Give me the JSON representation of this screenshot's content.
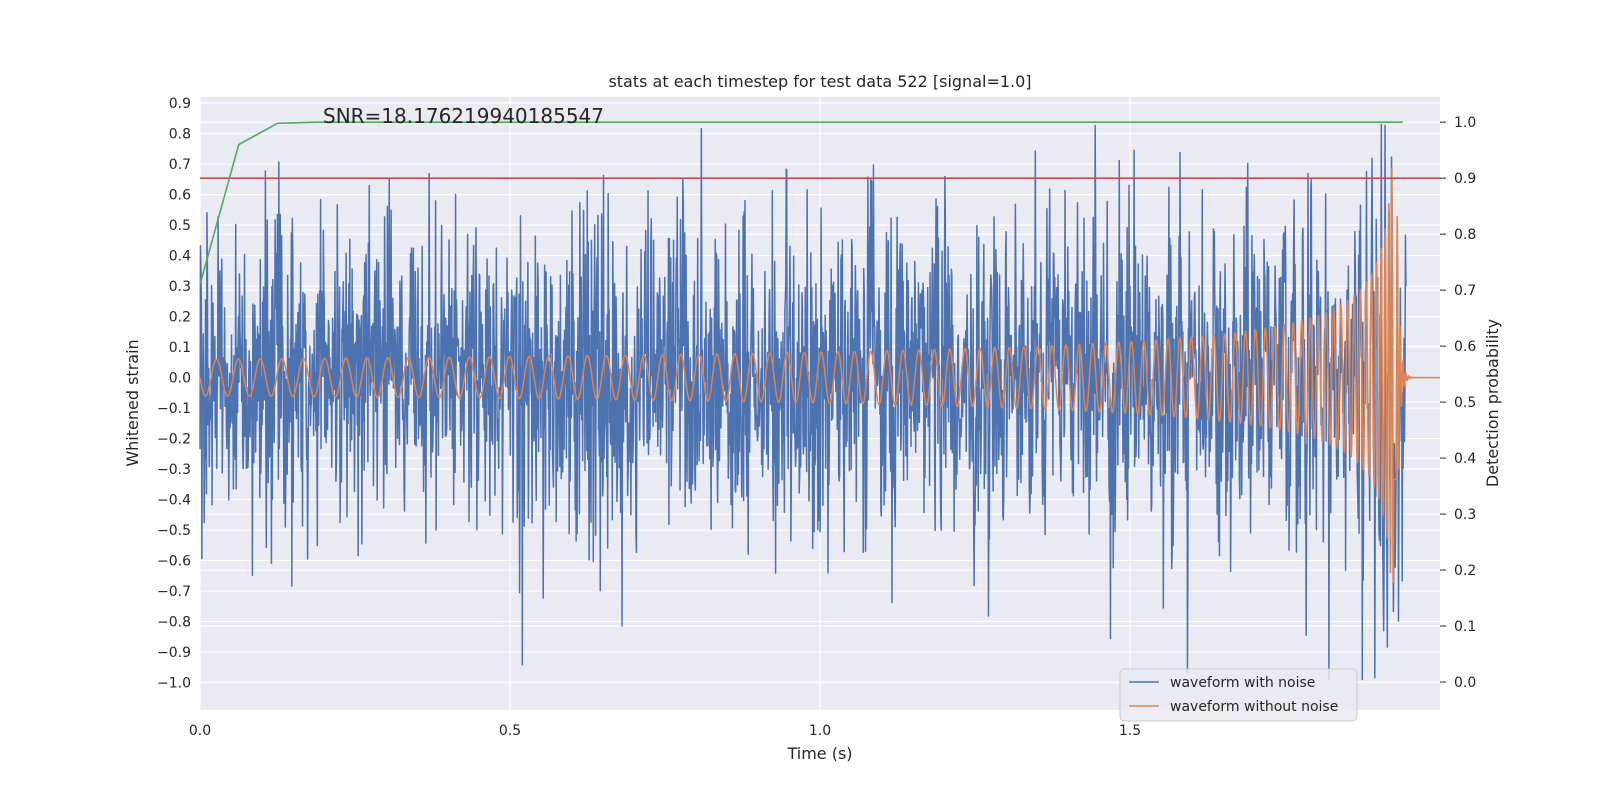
{
  "chart_data": {
    "type": "line",
    "title": "stats at each timestep for test data 522 [signal=1.0]",
    "xlabel": "Time (s)",
    "ylabel_left": "Whitened strain",
    "ylabel_right": "Detection probability",
    "annotation": "SNR=18.176219940185547",
    "xlim": [
      0.0,
      2.0
    ],
    "ylim_left": [
      -1.09,
      0.92
    ],
    "ylim_right": [
      -0.05,
      1.045
    ],
    "x_ticks": [
      0.0,
      0.5,
      1.0,
      1.5
    ],
    "x_tick_labels": [
      "0.0",
      "0.5",
      "1.0",
      "1.5"
    ],
    "y_left_ticks": [
      0.9,
      0.8,
      0.7,
      0.6,
      0.5,
      0.4,
      0.3,
      0.2,
      0.1,
      0.0,
      -0.1,
      -0.2,
      -0.3,
      -0.4,
      -0.5,
      -0.6,
      -0.7,
      -0.8,
      -0.9,
      -1.0
    ],
    "y_left_tick_labels": [
      "0.9",
      "0.8",
      "0.7",
      "0.6",
      "0.5",
      "0.4",
      "0.3",
      "0.2",
      "0.1",
      "0.0",
      "−0.1",
      "−0.2",
      "−0.3",
      "−0.4",
      "−0.5",
      "−0.6",
      "−0.7",
      "−0.8",
      "−0.9",
      "−1.0"
    ],
    "y_right_ticks": [
      1.0,
      0.9,
      0.8,
      0.7,
      0.6,
      0.5,
      0.4,
      0.3,
      0.2,
      0.1,
      0.0
    ],
    "y_right_tick_labels": [
      "1.0",
      "0.9",
      "0.8",
      "0.7",
      "0.6",
      "0.5",
      "0.4",
      "0.3",
      "0.2",
      "0.1",
      "0.0"
    ],
    "grid": true,
    "legend_position": "lower-right",
    "colors": {
      "background": "#eaeaf2",
      "grid": "#ffffff",
      "noisy": "#4c72b0",
      "clean": "#dd8452",
      "probability": "#55a868",
      "threshold": "#c44e52"
    },
    "series": [
      {
        "name": "waveform with noise",
        "axis": "left",
        "color": "#4c72b0",
        "t_start": 0.0,
        "t_end": 1.945,
        "amplitude_sd": 0.26,
        "range": [
          -0.99,
          0.83
        ]
      },
      {
        "name": "waveform without noise",
        "axis": "left",
        "color": "#dd8452",
        "t_start": 0.0,
        "t_end": 2.0,
        "f_start": 28,
        "f_end": 220,
        "amp_start": 0.06,
        "amp_peak": 0.69,
        "t_merger": 1.93
      },
      {
        "axis": "right",
        "color": "#55a868",
        "x": [
          0.0,
          0.0625,
          0.125,
          0.1875,
          0.25,
          0.5,
          1.0,
          1.5,
          1.94
        ],
        "y": [
          0.71,
          0.96,
          0.998,
          1.0,
          1.0,
          1.0,
          1.0,
          1.0,
          1.0
        ]
      },
      {
        "axis": "right",
        "color": "#c44e52",
        "x": [
          0.0,
          2.0
        ],
        "y": [
          0.9,
          0.9
        ]
      }
    ]
  }
}
